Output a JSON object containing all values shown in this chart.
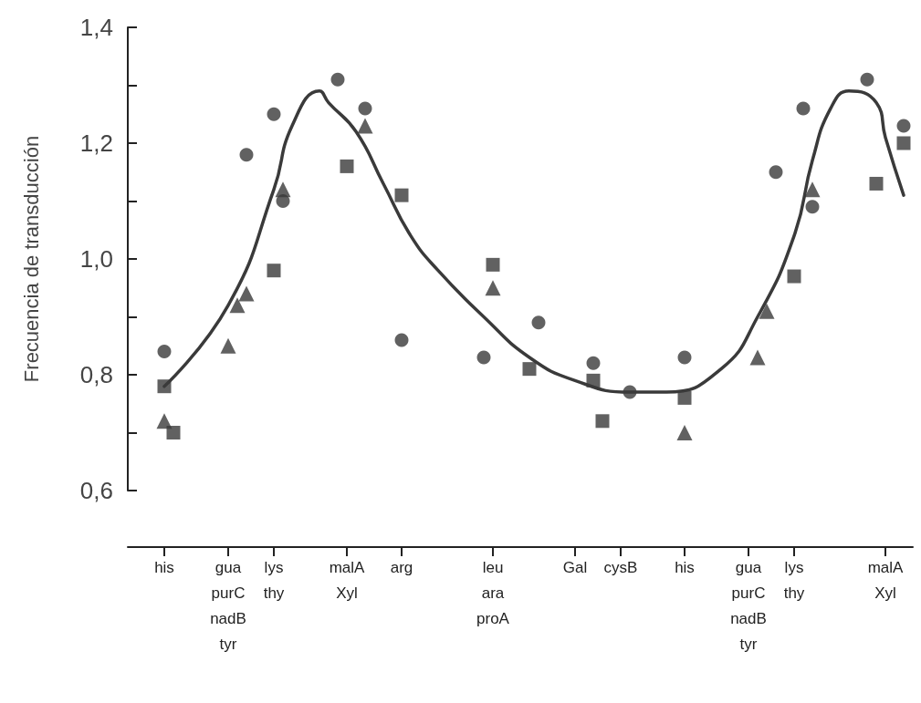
{
  "chart_data": {
    "type": "scatter",
    "ylabel": "Frecuencia de transducción",
    "categories": [
      null,
      null,
      null,
      null,
      "his",
      null,
      null,
      null,
      null,
      null,
      null,
      "gua\npurC\nnadB\ntyr",
      null,
      null,
      null,
      null,
      "lys\nthy",
      null,
      null,
      null,
      null,
      null,
      null,
      null,
      "malA\nXyl",
      null,
      null,
      null,
      null,
      null,
      "arg",
      null,
      null,
      null,
      null,
      null,
      null,
      null,
      null,
      null,
      "leu\nara\nproA",
      null,
      null,
      null,
      null,
      null,
      null,
      null,
      null,
      "Gal",
      null,
      null,
      null,
      null,
      "cysB",
      null,
      null,
      null,
      null,
      null,
      null,
      "his",
      null,
      null,
      null,
      null,
      null,
      null,
      "gua\npurC\nnadB\ntyr",
      null,
      null,
      null,
      null,
      "lys\nthy",
      null,
      null,
      null,
      null,
      null,
      null,
      null,
      null,
      null,
      "malA\nXyl",
      null,
      null,
      null
    ],
    "ylim": [
      0.6,
      1.4
    ],
    "yticks": [
      {
        "value": 0.6,
        "label": "0,6"
      },
      {
        "value": 0.7,
        "label": null
      },
      {
        "value": 0.8,
        "label": "0,8"
      },
      {
        "value": 0.9,
        "label": null
      },
      {
        "value": 1.0,
        "label": "1,0"
      },
      {
        "value": 1.1,
        "label": null
      },
      {
        "value": 1.2,
        "label": "1,2"
      },
      {
        "value": 1.3,
        "label": null
      },
      {
        "value": 1.4,
        "label": "1,4"
      }
    ],
    "grid": false,
    "series": [
      {
        "marker": "circle",
        "color": "#3a3a3a",
        "values": [
          null,
          null,
          null,
          null,
          0.84,
          null,
          null,
          null,
          null,
          null,
          null,
          null,
          null,
          1.18,
          null,
          null,
          1.25,
          1.1,
          null,
          null,
          null,
          null,
          null,
          1.31,
          null,
          null,
          1.26,
          null,
          null,
          null,
          0.86,
          null,
          null,
          null,
          null,
          null,
          null,
          null,
          null,
          0.83,
          null,
          null,
          null,
          null,
          null,
          0.89,
          null,
          null,
          null,
          null,
          null,
          0.82,
          null,
          null,
          null,
          0.77,
          null,
          null,
          null,
          null,
          null,
          0.83,
          null,
          null,
          null,
          null,
          null,
          null,
          null,
          null,
          null,
          1.15,
          null,
          null,
          1.26,
          1.09,
          null,
          null,
          null,
          null,
          null,
          1.31,
          null,
          null,
          null,
          1.23,
          null
        ]
      },
      {
        "marker": "square",
        "color": "#3a3a3a",
        "values": [
          null,
          null,
          null,
          null,
          0.78,
          0.7,
          null,
          null,
          null,
          null,
          null,
          null,
          null,
          null,
          null,
          null,
          0.98,
          null,
          null,
          null,
          null,
          null,
          null,
          null,
          1.16,
          null,
          null,
          null,
          null,
          null,
          1.11,
          null,
          null,
          null,
          null,
          null,
          null,
          null,
          null,
          null,
          0.99,
          null,
          null,
          null,
          0.81,
          null,
          null,
          null,
          null,
          null,
          null,
          0.79,
          0.72,
          null,
          null,
          null,
          null,
          null,
          null,
          null,
          null,
          0.76,
          null,
          null,
          null,
          null,
          null,
          null,
          null,
          null,
          null,
          null,
          null,
          0.97,
          null,
          null,
          null,
          null,
          null,
          null,
          null,
          null,
          1.13,
          null,
          null,
          1.2,
          null
        ]
      },
      {
        "marker": "triangle",
        "color": "#3a3a3a",
        "values": [
          null,
          null,
          null,
          null,
          0.72,
          null,
          null,
          null,
          null,
          null,
          null,
          0.85,
          0.92,
          0.94,
          null,
          null,
          null,
          1.12,
          null,
          null,
          null,
          null,
          null,
          null,
          null,
          null,
          1.23,
          null,
          null,
          null,
          null,
          null,
          null,
          null,
          null,
          null,
          null,
          null,
          null,
          null,
          0.95,
          null,
          null,
          null,
          null,
          null,
          null,
          null,
          null,
          null,
          null,
          null,
          null,
          null,
          null,
          null,
          null,
          null,
          null,
          null,
          null,
          0.7,
          null,
          null,
          null,
          null,
          null,
          null,
          null,
          0.83,
          0.91,
          null,
          null,
          null,
          null,
          1.12,
          null,
          null,
          null,
          null,
          null,
          null,
          null,
          null,
          null,
          null,
          null
        ]
      },
      {
        "type": "line",
        "marker": "none",
        "line_style": "solid",
        "color": "#3a3a3a",
        "values": [
          null,
          null,
          null,
          null,
          0.78,
          null,
          null,
          null,
          null,
          null,
          null,
          0.92,
          null,
          null,
          null,
          null,
          1.12,
          null,
          1.23,
          null,
          null,
          1.29,
          1.27,
          null,
          null,
          1.22,
          null,
          null,
          1.13,
          null,
          null,
          1.04,
          null,
          null,
          0.98,
          null,
          null,
          null,
          null,
          0.9,
          null,
          null,
          null,
          null,
          0.83,
          null,
          null,
          null,
          null,
          0.79,
          null,
          null,
          null,
          null,
          null,
          0.77,
          null,
          null,
          null,
          0.77,
          null,
          null,
          null,
          null,
          null,
          0.81,
          null,
          null,
          null,
          0.9,
          null,
          null,
          null,
          1.04,
          null,
          1.17,
          null,
          1.26,
          null,
          1.29,
          null,
          null,
          1.27,
          1.21,
          null,
          1.11,
          null
        ]
      }
    ]
  }
}
